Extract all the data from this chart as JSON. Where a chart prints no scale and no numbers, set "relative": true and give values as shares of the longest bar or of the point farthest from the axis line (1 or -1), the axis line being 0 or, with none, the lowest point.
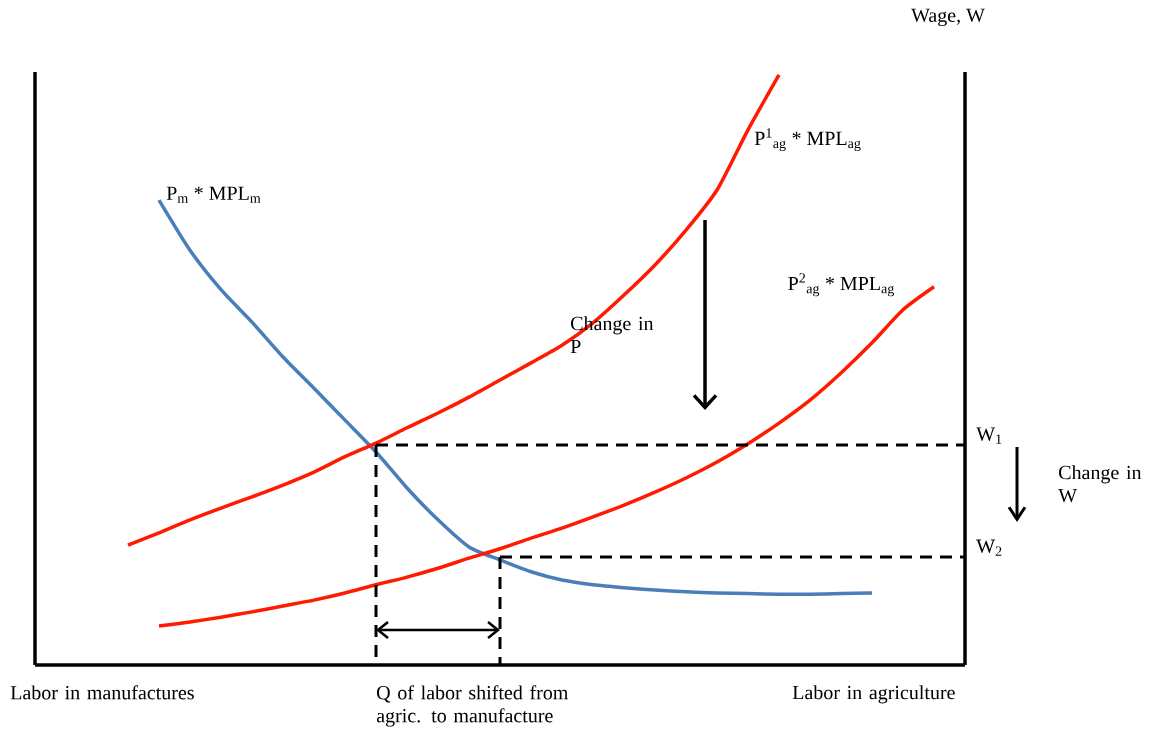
{
  "chart_data": {
    "type": "line",
    "relative": true,
    "ylabel": "Wage, W",
    "categories": [
      null,
      null,
      null,
      null,
      null,
      null,
      null,
      null,
      null,
      null,
      null,
      null,
      null,
      null,
      null,
      null,
      null,
      null,
      null,
      null,
      null,
      null,
      null,
      null,
      null,
      null,
      null,
      null,
      null,
      null,
      null
    ],
    "series": [
      {
        "name": "P$_{m}$ * MPL$_{m}$",
        "color": "#4a7ebb",
        "values": [
          null,
          null,
          null,
          null,
          0.788,
          0.703,
          0.636,
          0.581,
          0.522,
          0.469,
          0.415,
          0.361,
          0.3,
          0.246,
          0.2,
          0.178,
          0.158,
          0.144,
          0.136,
          0.131,
          0.127,
          0.124,
          0.122,
          0.121,
          0.12,
          0.12,
          0.121,
          0.122,
          null,
          null,
          null
        ]
      },
      {
        "name": "P$^{1}$$_{ag}$ * MPL$_{ag}$",
        "color": "#ff1a00",
        "values": [
          null,
          null,
          null,
          0.203,
          0.224,
          0.246,
          0.266,
          0.285,
          0.305,
          0.327,
          0.353,
          0.376,
          0.402,
          0.427,
          0.454,
          0.483,
          0.512,
          0.542,
          0.58,
          0.627,
          0.678,
          0.737,
          0.805,
          0.907,
          1.0,
          null,
          null,
          null,
          null,
          null,
          null
        ]
      },
      {
        "name": "P$^{2}$$_{ag}$ * MPL$_{ag}$",
        "color": "#ff1a00",
        "values": [
          null,
          null,
          null,
          null,
          0.066,
          0.073,
          0.081,
          0.09,
          0.1,
          0.11,
          0.122,
          0.136,
          0.149,
          0.164,
          0.181,
          0.197,
          0.215,
          0.232,
          0.251,
          0.271,
          0.293,
          0.317,
          0.344,
          0.375,
          0.41,
          0.449,
          0.495,
          0.546,
          0.602,
          0.641,
          null
        ]
      }
    ],
    "ref_lines": [
      {
        "axis": "y",
        "value": 0.373,
        "label": "W$_{1}$"
      },
      {
        "axis": "y",
        "value": 0.183,
        "label": "W$_{2}$"
      }
    ],
    "annotations": [
      "Change in P",
      "Change in W",
      "Labor in manufactures",
      "Q of labor shifted from agric. to manufacture",
      "Labor in agriculture"
    ]
  }
}
